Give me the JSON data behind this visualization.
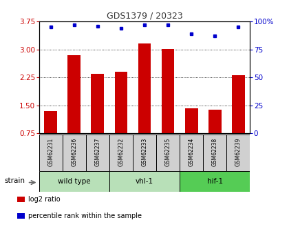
{
  "title": "GDS1379 / 20323",
  "samples": [
    "GSM62231",
    "GSM62236",
    "GSM62237",
    "GSM62232",
    "GSM62233",
    "GSM62235",
    "GSM62234",
    "GSM62238",
    "GSM62239"
  ],
  "log2_ratios": [
    1.35,
    2.85,
    2.35,
    2.4,
    3.15,
    3.02,
    1.42,
    1.38,
    2.3
  ],
  "percentile_ranks": [
    95,
    97,
    96,
    94,
    97,
    97,
    89,
    87,
    95
  ],
  "ylim_left": [
    0.75,
    3.75
  ],
  "yticks_left": [
    0.75,
    1.5,
    2.25,
    3.0,
    3.75
  ],
  "yticks_right": [
    0,
    25,
    50,
    75,
    100
  ],
  "bar_color": "#cc0000",
  "dot_color": "#0000cc",
  "groups": [
    {
      "label": "wild type",
      "indices": [
        0,
        1,
        2
      ],
      "color": "#b8e0b8"
    },
    {
      "label": "vhl-1",
      "indices": [
        3,
        4,
        5
      ],
      "color": "#b8e0b8"
    },
    {
      "label": "hif-1",
      "indices": [
        6,
        7,
        8
      ],
      "color": "#55cc55"
    }
  ],
  "strain_label": "strain",
  "legend": [
    {
      "label": "log2 ratio",
      "color": "#cc0000"
    },
    {
      "label": "percentile rank within the sample",
      "color": "#0000cc"
    }
  ],
  "grid_yticks": [
    1.5,
    2.25,
    3.0
  ],
  "left_tick_color": "#cc0000",
  "right_tick_color": "#0000cc",
  "bg_color": "#ffffff",
  "bar_bottom": 0.75,
  "sample_box_color": "#d0d0d0",
  "bar_width": 0.55
}
